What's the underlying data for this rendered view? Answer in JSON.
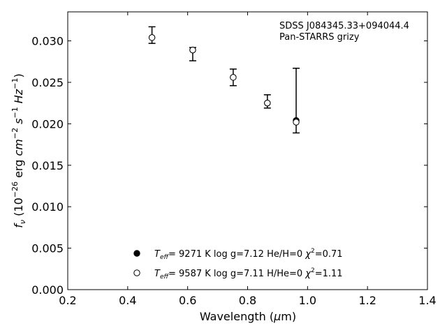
{
  "chart_data": {
    "type": "scatter",
    "annotation": [
      "SDSS J084345.33+094044.4",
      "Pan-STARRS grizy"
    ],
    "xlabel": "Wavelength (μm)",
    "ylabel": "fν (10⁻²⁶ erg cm⁻² s⁻¹ Hz⁻¹)",
    "xlim": [
      0.2,
      1.4
    ],
    "ylim": [
      0.0,
      0.0335
    ],
    "xticks": [
      "0.2",
      "0.4",
      "0.6",
      "0.8",
      "1.0",
      "1.2",
      "1.4"
    ],
    "yticks": [
      "0.000",
      "0.005",
      "0.010",
      "0.015",
      "0.020",
      "0.025",
      "0.030"
    ],
    "grid": false,
    "legend_position": "bottom-center",
    "observed": {
      "x": [
        0.481,
        0.617,
        0.752,
        0.866,
        0.962
      ],
      "y": [
        0.0307,
        0.0284,
        0.0256,
        0.0227,
        0.0228
      ],
      "yerr": [
        0.001,
        0.0008,
        0.001,
        0.0008,
        0.0039
      ]
    },
    "series": [
      {
        "name": "Teff=  9271 K  log g=7.12  He/H=0  χ²=0.71",
        "marker": "filled",
        "x": [
          0.481,
          0.617,
          0.752,
          0.866,
          0.962
        ],
        "y": [
          0.0304,
          0.0289,
          0.0256,
          0.0225,
          0.0204
        ]
      },
      {
        "name": "Teff=  9587 K  log g=7.11  H/He=0  χ²=1.11",
        "marker": "open",
        "x": [
          0.481,
          0.617,
          0.752,
          0.866,
          0.962
        ],
        "y": [
          0.0304,
          0.0289,
          0.0256,
          0.0225,
          0.0202
        ]
      }
    ],
    "legend": [
      {
        "prefix": "T",
        "sub": "eff",
        "text": "=  9271 K  log g=7.12  He/H=0  ",
        "chi": "χ",
        "sup": "2",
        "tail": "=0.71"
      },
      {
        "prefix": "T",
        "sub": "eff",
        "text": "=  9587 K  log g=7.11  H/He=0  ",
        "chi": "χ",
        "sup": "2",
        "tail": "=1.11"
      }
    ]
  }
}
